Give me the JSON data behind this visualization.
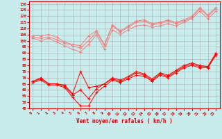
{
  "title": "",
  "xlabel": "Vent moyen/en rafales ( km/h )",
  "background_color": "#c8ecec",
  "grid_color": "#b0b0b0",
  "x_ticks": [
    0,
    1,
    2,
    3,
    4,
    5,
    6,
    7,
    8,
    9,
    10,
    11,
    12,
    13,
    14,
    15,
    16,
    17,
    18,
    19,
    20,
    21,
    22,
    23
  ],
  "ylim": [
    45,
    132
  ],
  "yticks": [
    45,
    50,
    55,
    60,
    65,
    70,
    75,
    80,
    85,
    90,
    95,
    100,
    105,
    110,
    115,
    120,
    125,
    130
  ],
  "line_rafales_1": [
    104,
    104,
    105,
    103,
    99,
    97,
    96,
    104,
    108,
    97,
    113,
    108,
    112,
    116,
    117,
    114,
    115,
    117,
    115,
    117,
    120,
    127,
    121,
    127
  ],
  "line_rafales_2": [
    103,
    102,
    103,
    101,
    98,
    96,
    94,
    100,
    107,
    96,
    112,
    107,
    111,
    115,
    116,
    113,
    114,
    116,
    114,
    116,
    119,
    126,
    120,
    126
  ],
  "line_rafales_3": [
    102,
    100,
    102,
    99,
    96,
    93,
    91,
    97,
    105,
    93,
    109,
    105,
    109,
    112,
    113,
    111,
    112,
    114,
    112,
    115,
    118,
    124,
    118,
    124
  ],
  "line_moyen_1": [
    67,
    70,
    65,
    65,
    64,
    57,
    75,
    62,
    63,
    65,
    70,
    68,
    71,
    75,
    73,
    69,
    74,
    72,
    76,
    80,
    82,
    80,
    79,
    90
  ],
  "line_moyen_2": [
    67,
    69,
    65,
    65,
    63,
    56,
    60,
    53,
    61,
    65,
    69,
    67,
    70,
    74,
    72,
    68,
    73,
    71,
    75,
    79,
    81,
    79,
    79,
    89
  ],
  "line_moyen_3": [
    66,
    68,
    64,
    64,
    62,
    54,
    47,
    47,
    58,
    63,
    68,
    66,
    69,
    72,
    71,
    67,
    72,
    70,
    74,
    78,
    80,
    78,
    78,
    88
  ],
  "color_rafales": "#f08080",
  "color_moyen": "#ff0000",
  "marker_size": 2.5,
  "linewidth": 0.7
}
